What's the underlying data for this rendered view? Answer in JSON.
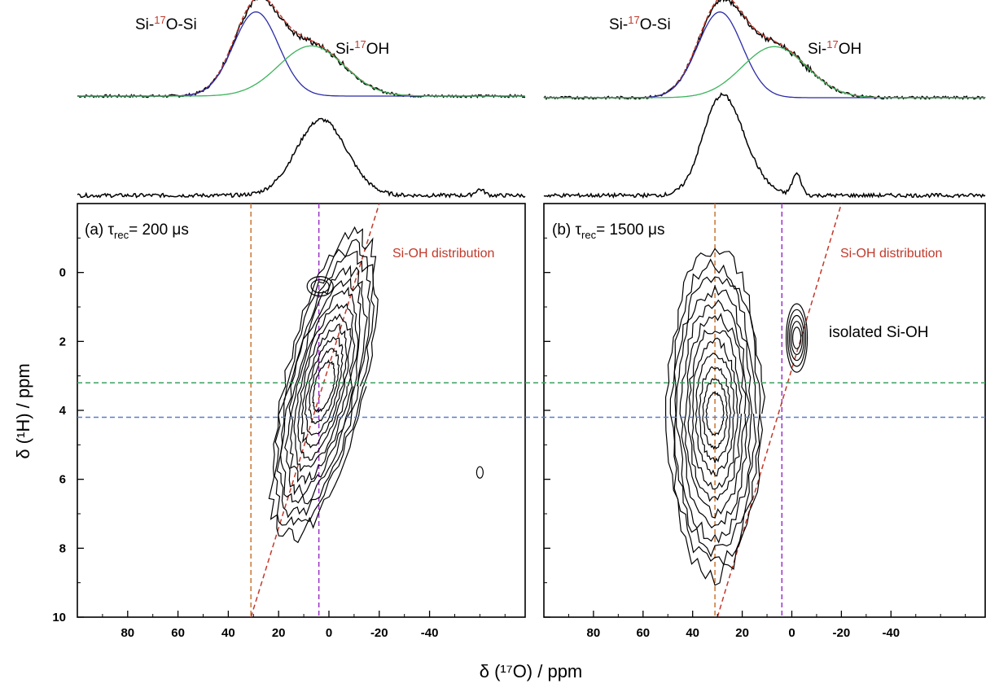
{
  "figure": {
    "x_axis_title": "δ (¹⁷O) / ppm",
    "y_axis_title": "δ (¹H) / ppm",
    "colors": {
      "experimental": "#000000",
      "fit_total": "#c0392b",
      "si_o_si_component": "#2b2ba8",
      "si_oh_component": "#3cb35c",
      "orange_guide": "#c87533",
      "purple_guide": "#9b30c8",
      "green_guide": "#3aa060",
      "blue_guide": "#5b7ec8",
      "distribution_line": "#c0392b"
    }
  },
  "chart_data": [
    {
      "type": "contour",
      "panel": "(a)",
      "label_prefix": "(a) τ",
      "label_sub": "rec",
      "label_suffix": "= 200 μs",
      "x_axis": {
        "reversed": true,
        "range": [
          100,
          -78
        ],
        "ticks": [
          80,
          60,
          40,
          20,
          0,
          -20,
          -40
        ],
        "tick_labels": [
          "80",
          "60",
          "40",
          "20",
          "0",
          "-20",
          "-40"
        ]
      },
      "y_axis": {
        "reversed": true,
        "range": [
          -2,
          10
        ],
        "ticks": [
          0,
          2,
          4,
          6,
          8,
          10
        ],
        "tick_labels": [
          "0",
          "2",
          "4",
          "6",
          "8",
          "10"
        ]
      },
      "top_spectrum": {
        "peaks": [
          {
            "label": "Si-17O-Si",
            "label_a": "Si-",
            "label_sup": "17",
            "label_b": "O-Si",
            "center_ppm": 29,
            "width_ppm": 9
          },
          {
            "label": "Si-17OH",
            "label_a": "Si-",
            "label_sup": "17",
            "label_b": "OH",
            "center_ppm": 7,
            "width_ppm": 13
          }
        ]
      },
      "slice_spectrum": {
        "peak_ppm": 3,
        "width_ppm": 10,
        "small_peak_ppm": -60
      },
      "contours": {
        "center_ppm_O": 2,
        "center_ppm_H": 3.3,
        "secondary_center_ppm_O": 3.5,
        "secondary_center_ppm_H": 0.4,
        "tiny_peak_ppm_O": -60,
        "tiny_peak_ppm_H": 5.8,
        "levels": 12
      },
      "guides": {
        "orange_ppm_O": 31,
        "purple_ppm_O": 4,
        "green_ppm_H": 3.2,
        "blue_ppm_H": 4.2
      },
      "distribution_line": {
        "label": "Si-OH distribution",
        "from": [
          31,
          10
        ],
        "to": [
          -20,
          -2
        ]
      }
    },
    {
      "type": "contour",
      "panel": "(b)",
      "label_prefix": "(b) τ",
      "label_sub": "rec",
      "label_suffix": "= 1500 μs",
      "x_axis": {
        "reversed": true,
        "range": [
          100,
          -78
        ],
        "ticks": [
          80,
          60,
          40,
          20,
          0,
          -20,
          -40
        ],
        "tick_labels": [
          "80",
          "60",
          "40",
          "20",
          "0",
          "-20",
          "-40"
        ]
      },
      "y_axis": {
        "reversed": true,
        "range": [
          -2,
          10
        ],
        "ticks": [
          0,
          2,
          4,
          6,
          8,
          10
        ],
        "tick_labels": []
      },
      "top_spectrum": {
        "peaks": [
          {
            "label": "Si-17O-Si",
            "label_a": "Si-",
            "label_sup": "17",
            "label_b": "O-Si",
            "center_ppm": 29,
            "width_ppm": 9
          },
          {
            "label": "Si-17OH",
            "label_a": "Si-",
            "label_sup": "17",
            "label_b": "OH",
            "center_ppm": 7,
            "width_ppm": 13
          }
        ]
      },
      "slice_spectrum": {
        "peak_ppm": 30,
        "width_ppm": 10,
        "small_peak_ppm": -2
      },
      "contours": {
        "center_ppm_O": 31,
        "center_ppm_H": 4.1,
        "secondary_center_ppm_O": -2,
        "secondary_center_ppm_H": 1.9,
        "levels": 12
      },
      "guides": {
        "orange_ppm_O": 31,
        "purple_ppm_O": 4,
        "green_ppm_H": 3.2,
        "blue_ppm_H": 4.2
      },
      "distribution_line": {
        "label": "Si-OH distribution",
        "from": [
          30,
          10
        ],
        "to": [
          -20,
          -2
        ]
      },
      "annotation": "isolated Si-OH"
    }
  ]
}
